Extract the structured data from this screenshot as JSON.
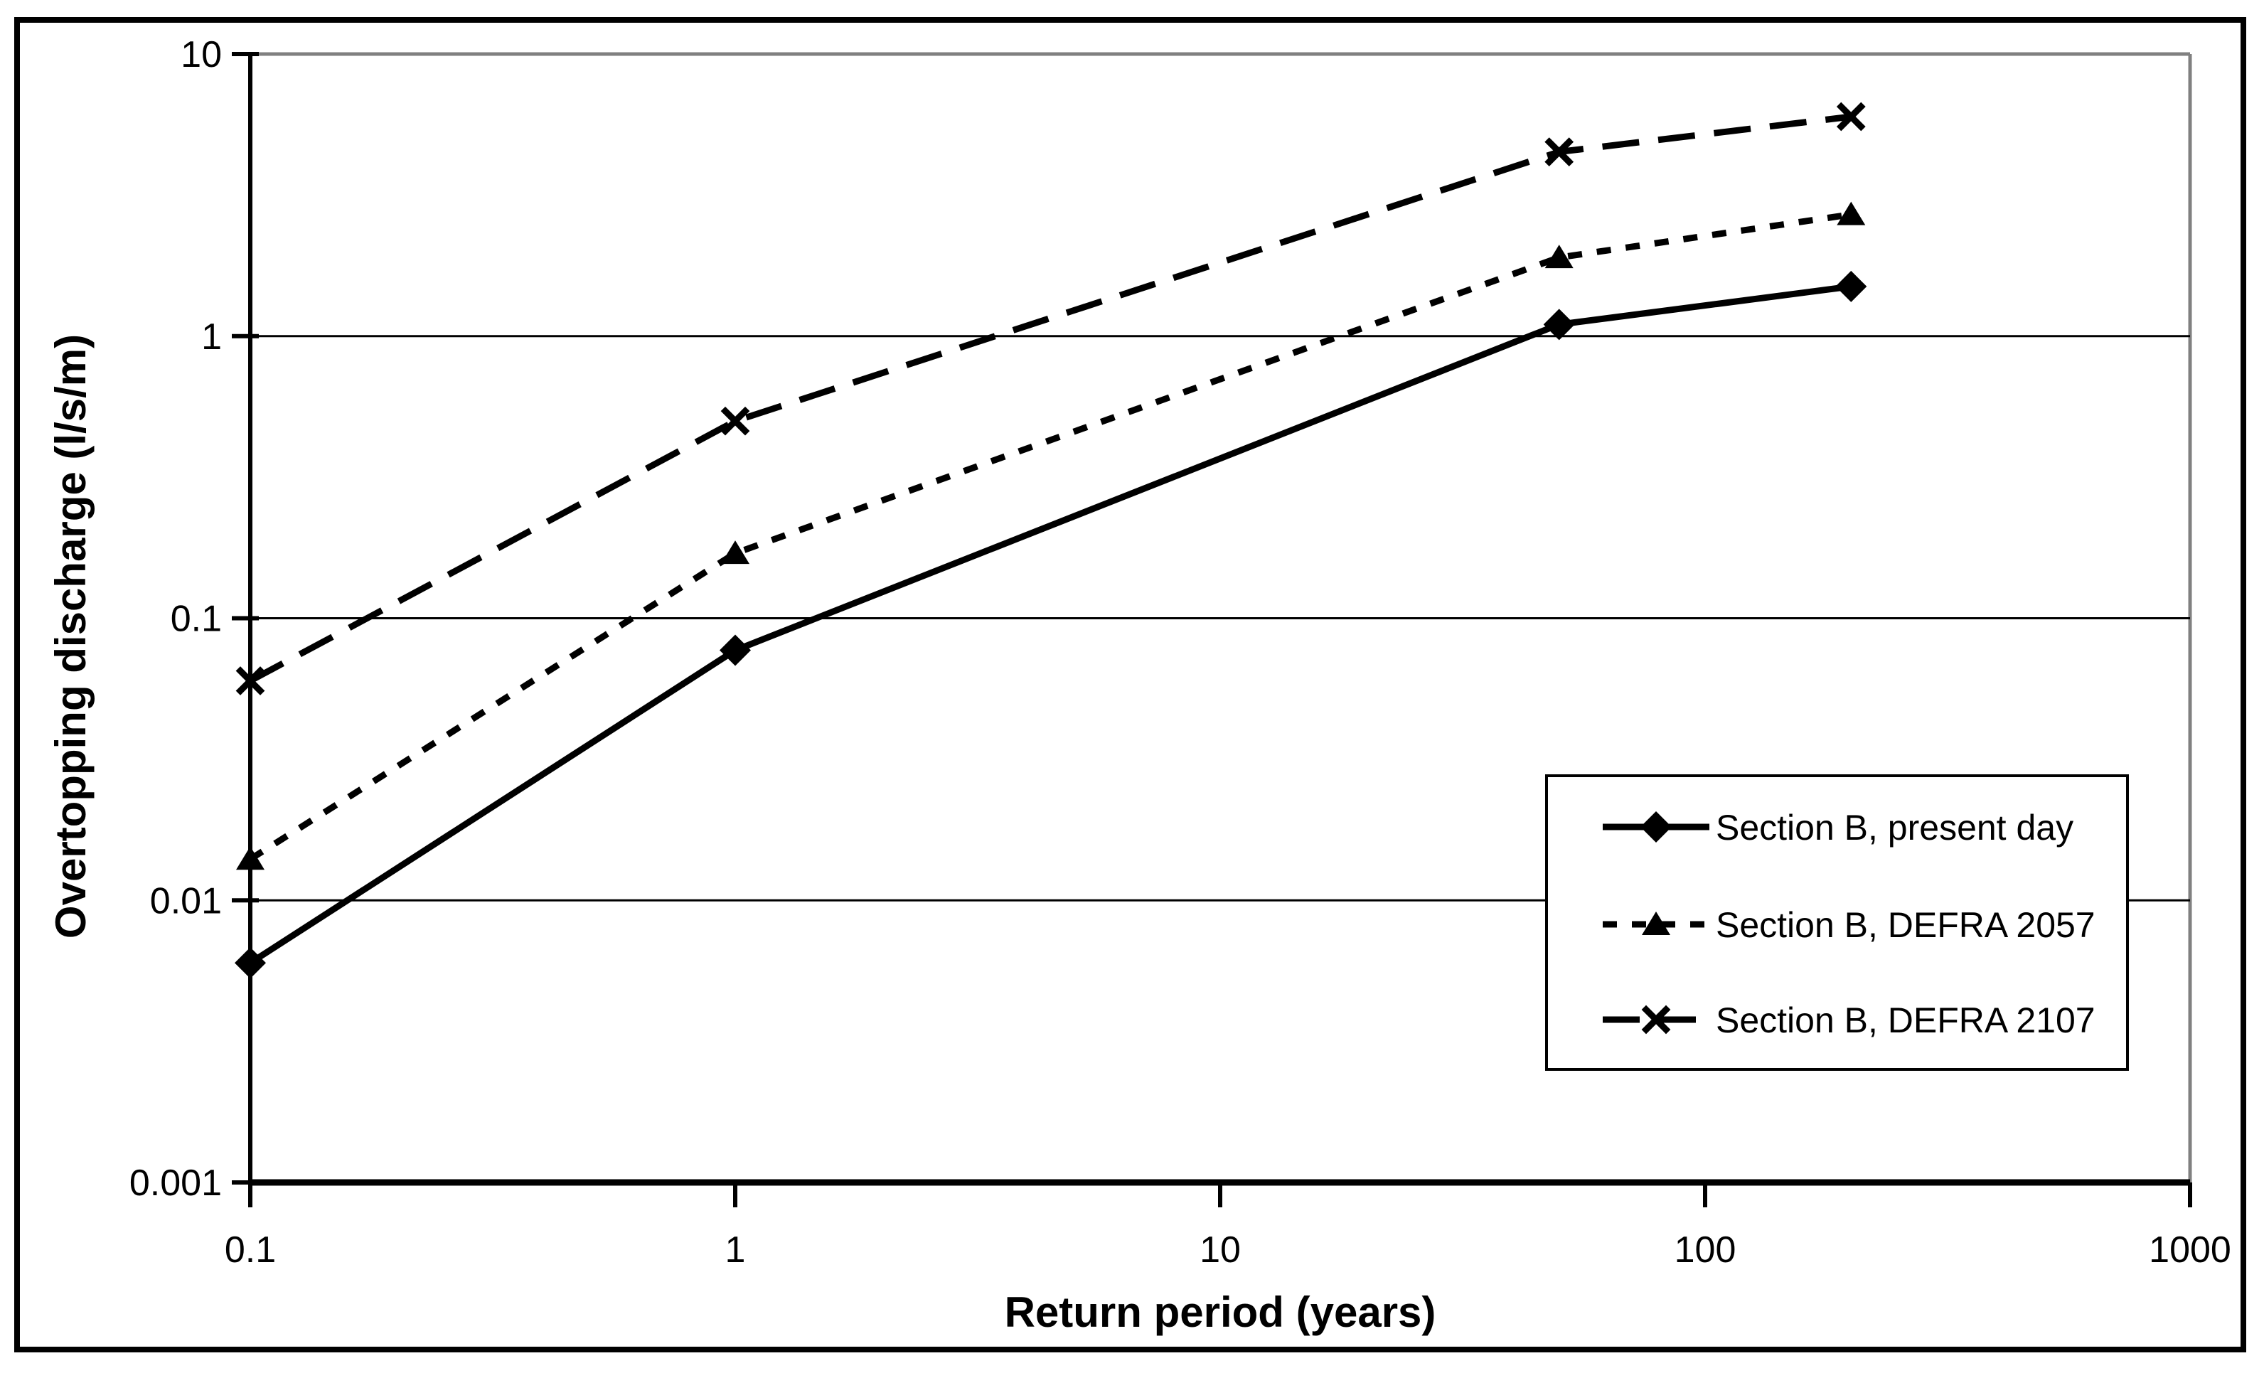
{
  "figure": {
    "background_color": "#ffffff",
    "border_color": "#000000"
  },
  "chart_data": {
    "type": "line",
    "title": "",
    "x_axis": {
      "label": "Return period (years)",
      "scale": "log",
      "min": 0.1,
      "max": 1000,
      "ticks": [
        0.1,
        1,
        10,
        100,
        1000
      ],
      "tick_labels": [
        "0.1",
        "1",
        "10",
        "100",
        "1000"
      ]
    },
    "y_axis": {
      "label": "Overtopping discharge (l/s/m)",
      "scale": "log",
      "min": 0.001,
      "max": 10,
      "ticks": [
        10,
        1,
        0.1,
        0.01,
        0.001
      ],
      "tick_labels": [
        "10",
        "1",
        "0.1",
        "0.01",
        "0.001"
      ],
      "gridlines": [
        1,
        0.1,
        0.01
      ]
    },
    "x": [
      0.1,
      1,
      50,
      200
    ],
    "series": [
      {
        "name": "Section B, present day",
        "marker": "diamond",
        "line_style": "solid",
        "values": [
          0.006,
          0.077,
          1.1,
          1.5
        ]
      },
      {
        "name": "Section B, DEFRA 2057",
        "marker": "triangle",
        "line_style": "dotted",
        "values": [
          0.014,
          0.17,
          1.9,
          2.7
        ]
      },
      {
        "name": "Section B, DEFRA 2107",
        "marker": "x",
        "line_style": "dashed",
        "values": [
          0.06,
          0.5,
          4.5,
          6
        ]
      }
    ],
    "legend": {
      "position": "inside-right",
      "items": [
        "Section B, present day",
        "Section B, DEFRA 2057",
        "Section B, DEFRA 2107"
      ]
    },
    "grid": "horizontal-major",
    "colors": {
      "series": "#000000",
      "gridline": "#000000",
      "plot_border": "#808080",
      "text": "#000000"
    }
  }
}
